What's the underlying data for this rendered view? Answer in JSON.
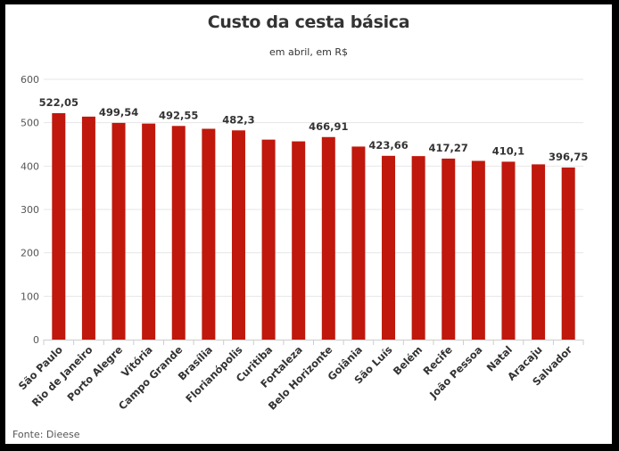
{
  "chart_data": {
    "type": "bar",
    "title": "Custo da cesta básica",
    "subtitle": "em abril, em R$",
    "source": "Fonte: Dieese",
    "xlabel": "",
    "ylabel": "",
    "ylim": [
      0,
      600
    ],
    "yticks": [
      0,
      100,
      200,
      300,
      400,
      500,
      600
    ],
    "grid": true,
    "bar_color": "#c0180c",
    "categories": [
      "São Paulo",
      "Rio de Janeiro",
      "Porto Alegre",
      "Vitória",
      "Campo Grande",
      "Brasília",
      "Florianópolis",
      "Curitiba",
      "Fortaleza",
      "Belo Horizonte",
      "Goiânia",
      "São Luís",
      "Belém",
      "Recife",
      "João Pessoa",
      "Natal",
      "Aracaju",
      "Salvador"
    ],
    "values": [
      522.05,
      514,
      499.54,
      498,
      492.55,
      486,
      482.3,
      461,
      457,
      466.91,
      445,
      423.66,
      423,
      417.27,
      412,
      410.1,
      404,
      396.75
    ],
    "data_labels": [
      "522,05",
      "",
      "499,54",
      "",
      "492,55",
      "",
      "482,3",
      "",
      "",
      "466,91",
      "",
      "423,66",
      "",
      "417,27",
      "",
      "410,1",
      "",
      "396,75"
    ]
  }
}
